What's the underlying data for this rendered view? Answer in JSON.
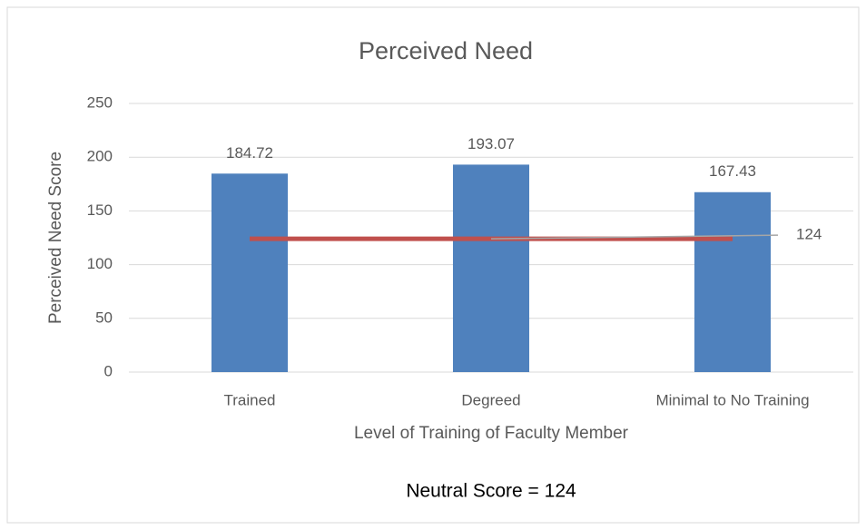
{
  "chart_data": {
    "type": "bar",
    "title": "Perceived Need",
    "x_label": "Level of Training of Faculty Member",
    "y_label": "Perceived Need Score",
    "categories": [
      "Trained",
      "Degreed",
      "Minimal to No Training"
    ],
    "values": [
      184.72,
      193.07,
      167.43
    ],
    "color": "#4f81bd",
    "ylim": [
      0,
      250
    ],
    "yticks": [
      0,
      50,
      100,
      150,
      200,
      250
    ],
    "grid": true,
    "neutral_line": {
      "value": 124,
      "color": "#c0504d"
    },
    "caption": "Neutral Score = 124"
  }
}
